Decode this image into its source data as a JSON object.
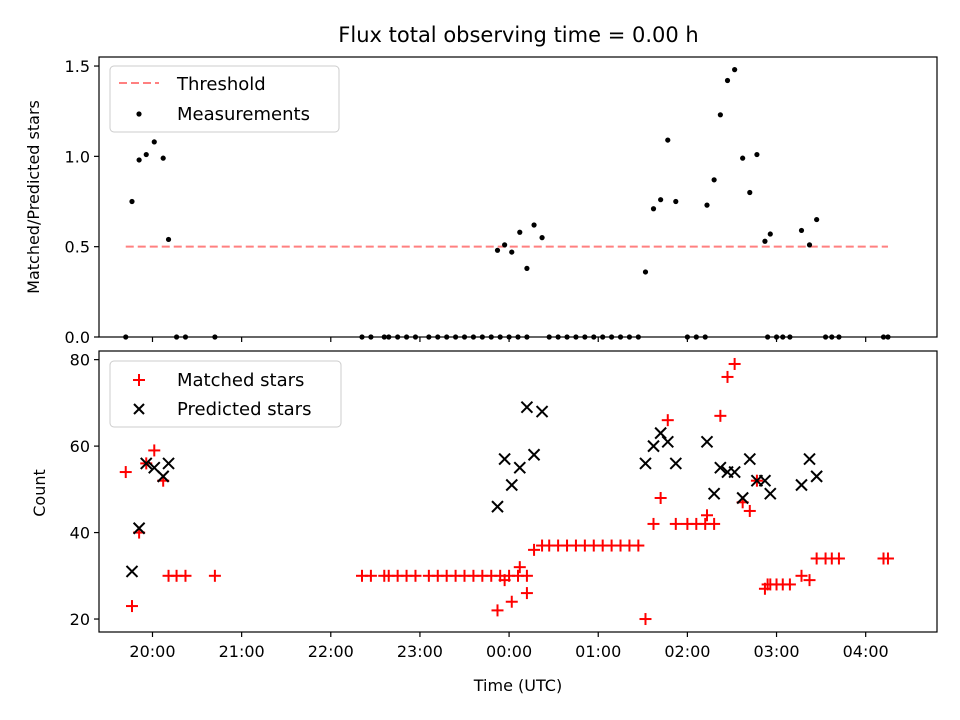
{
  "chart_data": [
    {
      "type": "scatter",
      "title": "Flux total observing time = 0.00 h",
      "xlabel": "",
      "ylabel": "Matched/Predicted stars",
      "xlim": [
        -0.6,
        8.8
      ],
      "ylim": [
        0,
        1.55
      ],
      "yticks": [
        "0.0",
        "0.5",
        "1.0",
        "1.5"
      ],
      "yticks_values": [
        0,
        0.5,
        1.0,
        1.5
      ],
      "grid": false,
      "legend_position": "top-left",
      "threshold": {
        "name": "Threshold",
        "y": 0.5,
        "x_range": [
          -0.3,
          8.25
        ],
        "color": "#ff8080"
      },
      "series": [
        {
          "name": "Measurements",
          "color": "#000000",
          "marker": "dot",
          "x": [
            -0.3,
            -0.23,
            -0.15,
            -0.07,
            0.02,
            0.12,
            0.18,
            0.27,
            0.37,
            0.7,
            2.35,
            2.45,
            2.6,
            2.65,
            2.75,
            2.85,
            2.95,
            3.1,
            3.2,
            3.3,
            3.4,
            3.5,
            3.6,
            3.7,
            3.8,
            3.9,
            4.0,
            4.1,
            4.2,
            3.87,
            3.95,
            4.03,
            4.12,
            4.2,
            4.28,
            4.37,
            4.45,
            4.55,
            4.65,
            4.75,
            4.85,
            4.95,
            5.05,
            5.15,
            5.25,
            5.35,
            5.45,
            5.53,
            5.62,
            5.7,
            5.78,
            5.87,
            6.0,
            6.1,
            6.2,
            6.22,
            6.3,
            6.37,
            6.45,
            6.53,
            6.62,
            6.7,
            6.78,
            6.87,
            6.93,
            6.9,
            7.0,
            7.07,
            7.15,
            7.28,
            7.37,
            7.45,
            7.55,
            7.62,
            7.7,
            8.2,
            8.25
          ],
          "y": [
            0,
            0.75,
            0.98,
            1.01,
            1.08,
            0.99,
            0.54,
            0,
            0,
            0,
            0,
            0,
            0,
            0,
            0,
            0,
            0,
            0,
            0,
            0,
            0,
            0,
            0,
            0,
            0,
            0,
            0,
            0,
            0,
            0.48,
            0.51,
            0.47,
            0.58,
            0.38,
            0.62,
            0.55,
            0,
            0,
            0,
            0,
            0,
            0,
            0,
            0,
            0,
            0,
            0,
            0.36,
            0.71,
            0.76,
            1.09,
            0.75,
            0,
            0,
            0,
            0.73,
            0.87,
            1.23,
            1.42,
            1.48,
            0.99,
            0.8,
            1.01,
            0.53,
            0.57,
            0,
            0,
            0,
            0,
            0.59,
            0.51,
            0.65,
            0,
            0,
            0,
            0,
            0
          ]
        }
      ]
    },
    {
      "type": "scatter",
      "title": "",
      "xlabel": "Time (UTC)",
      "ylabel": "Count",
      "xlim": [
        -0.6,
        8.8
      ],
      "ylim": [
        17,
        82
      ],
      "xticks": [
        "20:00",
        "21:00",
        "22:00",
        "23:00",
        "00:00",
        "01:00",
        "02:00",
        "03:00",
        "04:00"
      ],
      "xticks_values": [
        0,
        1,
        2,
        3,
        4,
        5,
        6,
        7,
        8
      ],
      "yticks": [
        "20",
        "40",
        "60",
        "80"
      ],
      "yticks_values": [
        20,
        40,
        60,
        80
      ],
      "grid": false,
      "legend_position": "top-left",
      "series": [
        {
          "name": "Matched stars",
          "color": "#ff0000",
          "marker": "plus",
          "x": [
            -0.3,
            -0.23,
            -0.15,
            -0.07,
            0.02,
            0.12,
            0.18,
            0.27,
            0.37,
            0.7,
            2.35,
            2.45,
            2.6,
            2.65,
            2.75,
            2.85,
            2.95,
            3.1,
            3.2,
            3.3,
            3.4,
            3.5,
            3.6,
            3.7,
            3.8,
            3.9,
            4.0,
            4.1,
            4.2,
            3.87,
            3.95,
            4.03,
            4.12,
            4.2,
            4.28,
            4.37,
            4.45,
            4.55,
            4.65,
            4.75,
            4.85,
            4.95,
            5.05,
            5.15,
            5.25,
            5.35,
            5.45,
            5.53,
            5.62,
            5.7,
            5.78,
            5.87,
            6.0,
            6.1,
            6.2,
            6.22,
            6.3,
            6.37,
            6.45,
            6.53,
            6.62,
            6.7,
            6.78,
            6.87,
            6.93,
            6.9,
            7.0,
            7.07,
            7.15,
            7.28,
            7.37,
            7.45,
            7.55,
            7.62,
            7.7,
            8.2,
            8.25
          ],
          "y": [
            54,
            23,
            40,
            56,
            59,
            52,
            30,
            30,
            30,
            30,
            30,
            30,
            30,
            30,
            30,
            30,
            30,
            30,
            30,
            30,
            30,
            30,
            30,
            30,
            30,
            30,
            30,
            30,
            30,
            22,
            29,
            24,
            32,
            26,
            36,
            37,
            37,
            37,
            37,
            37,
            37,
            37,
            37,
            37,
            37,
            37,
            37,
            20,
            42,
            48,
            66,
            42,
            42,
            42,
            42,
            44,
            42,
            67,
            76,
            79,
            47,
            45,
            52,
            27,
            28,
            28,
            28,
            28,
            28,
            30,
            29,
            34,
            34,
            34,
            34,
            34,
            34
          ]
        },
        {
          "name": "Predicted stars",
          "color": "#000000",
          "marker": "x",
          "x": [
            -0.23,
            -0.15,
            -0.07,
            0.02,
            0.12,
            0.18,
            3.87,
            3.95,
            4.03,
            4.12,
            4.2,
            4.28,
            4.37,
            5.53,
            5.62,
            5.7,
            5.78,
            5.87,
            6.22,
            6.3,
            6.37,
            6.45,
            6.53,
            6.62,
            6.7,
            6.78,
            6.87,
            6.93,
            7.28,
            7.37,
            7.45
          ],
          "y": [
            31,
            41,
            56,
            55,
            53,
            56,
            46,
            57,
            51,
            55,
            69,
            58,
            68,
            56,
            60,
            63,
            61,
            56,
            61,
            49,
            55,
            54,
            54,
            48,
            57,
            52,
            52,
            49,
            51,
            57,
            53
          ]
        }
      ]
    }
  ]
}
